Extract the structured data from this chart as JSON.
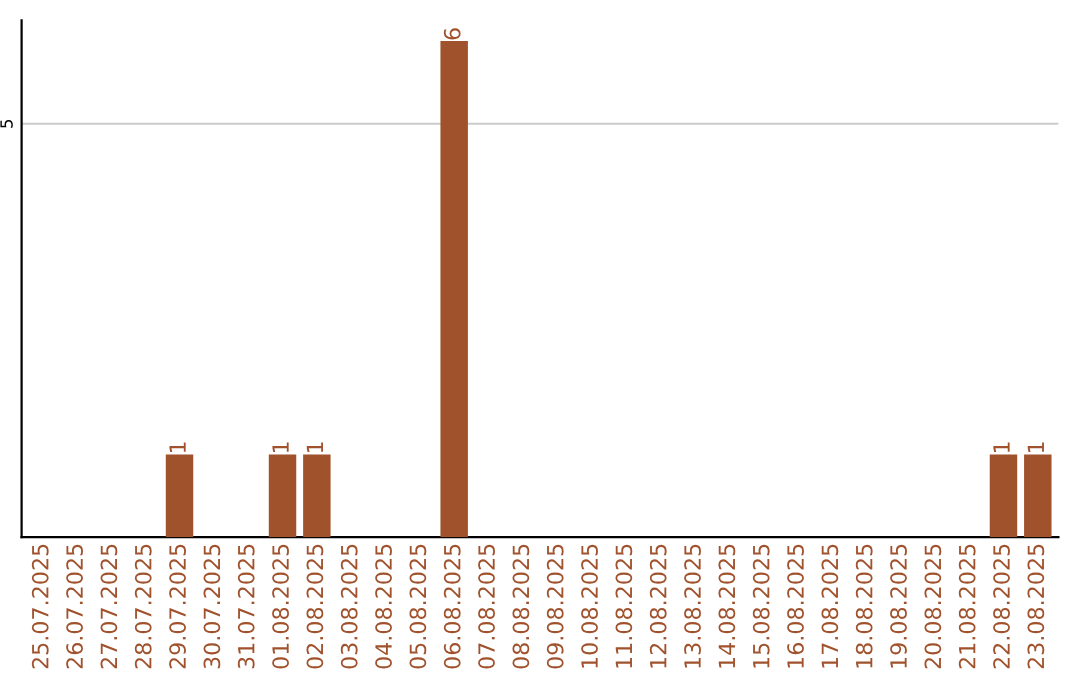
{
  "chart_data": {
    "type": "bar",
    "categories": [
      "25.07.2025",
      "26.07.2025",
      "27.07.2025",
      "28.07.2025",
      "29.07.2025",
      "30.07.2025",
      "31.07.2025",
      "01.08.2025",
      "02.08.2025",
      "03.08.2025",
      "04.08.2025",
      "05.08.2025",
      "06.08.2025",
      "07.08.2025",
      "08.08.2025",
      "09.08.2025",
      "10.08.2025",
      "11.08.2025",
      "12.08.2025",
      "13.08.2025",
      "14.08.2025",
      "15.08.2025",
      "16.08.2025",
      "17.08.2025",
      "18.08.2025",
      "19.08.2025",
      "20.08.2025",
      "21.08.2025",
      "22.08.2025",
      "23.08.2025"
    ],
    "values": [
      0,
      0,
      0,
      0,
      1,
      0,
      0,
      1,
      1,
      0,
      0,
      0,
      6,
      0,
      0,
      0,
      0,
      0,
      0,
      0,
      0,
      0,
      0,
      0,
      0,
      0,
      0,
      0,
      1,
      1
    ],
    "value_labels": [
      null,
      null,
      null,
      null,
      "1",
      null,
      null,
      "1",
      "1",
      null,
      null,
      null,
      "6",
      null,
      null,
      null,
      null,
      null,
      null,
      null,
      null,
      null,
      null,
      null,
      null,
      null,
      null,
      null,
      "1",
      "1"
    ],
    "color": "#a0522d",
    "ylim": [
      0,
      6.25
    ],
    "yticks": [
      5
    ],
    "grid": "y",
    "legend": false
  }
}
